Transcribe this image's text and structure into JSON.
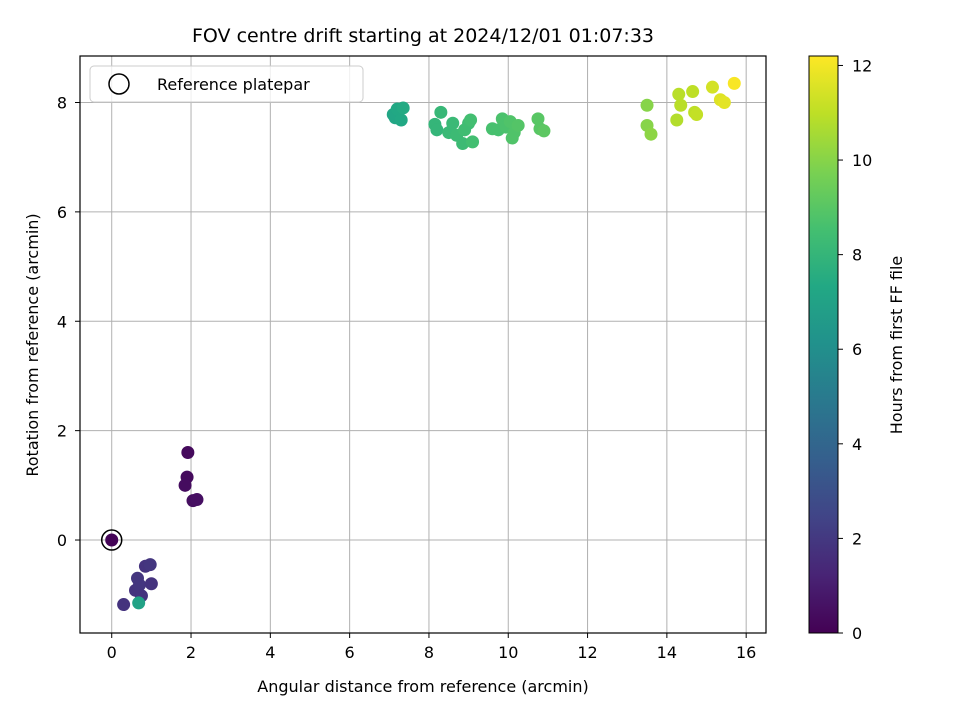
{
  "chart_data": {
    "type": "scatter",
    "title": "FOV centre drift starting at 2024/12/01 01:07:33",
    "xlabel": "Angular distance from reference (arcmin)",
    "ylabel": "Rotation from reference (arcmin)",
    "xlim": [
      -0.8,
      16.5
    ],
    "ylim": [
      -1.7,
      8.85
    ],
    "xticks": [
      0,
      2,
      4,
      6,
      8,
      10,
      12,
      14,
      16
    ],
    "yticks": [
      0,
      2,
      4,
      6,
      8
    ],
    "grid": true,
    "legend": {
      "placement": "upper-left",
      "entries": [
        "Reference platepar"
      ]
    },
    "reference_point": {
      "x": 0,
      "y": 0,
      "label": "Reference platepar"
    },
    "colorbar": {
      "label": "Hours from first FF file",
      "colormap": "viridis",
      "range": [
        0,
        12.2
      ],
      "ticks": [
        0,
        2,
        4,
        6,
        8,
        10,
        12
      ]
    },
    "points": [
      {
        "x": 0.0,
        "y": 0.0,
        "c": 0.1
      },
      {
        "x": 1.92,
        "y": 1.6,
        "c": 0.3
      },
      {
        "x": 1.9,
        "y": 1.15,
        "c": 0.35
      },
      {
        "x": 1.85,
        "y": 1.0,
        "c": 0.4
      },
      {
        "x": 2.05,
        "y": 0.72,
        "c": 0.45
      },
      {
        "x": 2.15,
        "y": 0.74,
        "c": 0.5
      },
      {
        "x": 0.3,
        "y": -1.18,
        "c": 1.8
      },
      {
        "x": 0.6,
        "y": -0.92,
        "c": 1.8
      },
      {
        "x": 0.65,
        "y": -0.7,
        "c": 1.9
      },
      {
        "x": 0.7,
        "y": -0.82,
        "c": 1.9
      },
      {
        "x": 0.75,
        "y": -1.02,
        "c": 1.8
      },
      {
        "x": 0.85,
        "y": -0.48,
        "c": 1.8
      },
      {
        "x": 0.97,
        "y": -0.45,
        "c": 1.9
      },
      {
        "x": 1.0,
        "y": -0.8,
        "c": 1.8
      },
      {
        "x": 0.68,
        "y": -1.15,
        "c": 7.0
      },
      {
        "x": 7.1,
        "y": 7.78,
        "c": 7.2
      },
      {
        "x": 7.15,
        "y": 7.72,
        "c": 7.2
      },
      {
        "x": 7.2,
        "y": 7.88,
        "c": 7.3
      },
      {
        "x": 7.3,
        "y": 7.68,
        "c": 7.3
      },
      {
        "x": 7.35,
        "y": 7.9,
        "c": 7.4
      },
      {
        "x": 8.15,
        "y": 7.6,
        "c": 8.0
      },
      {
        "x": 8.2,
        "y": 7.5,
        "c": 8.0
      },
      {
        "x": 8.3,
        "y": 7.82,
        "c": 8.1
      },
      {
        "x": 8.5,
        "y": 7.45,
        "c": 8.2
      },
      {
        "x": 8.6,
        "y": 7.62,
        "c": 8.2
      },
      {
        "x": 8.7,
        "y": 7.4,
        "c": 8.3
      },
      {
        "x": 8.85,
        "y": 7.25,
        "c": 8.3
      },
      {
        "x": 8.9,
        "y": 7.5,
        "c": 8.4
      },
      {
        "x": 9.0,
        "y": 7.62,
        "c": 8.4
      },
      {
        "x": 9.05,
        "y": 7.68,
        "c": 8.5
      },
      {
        "x": 9.1,
        "y": 7.28,
        "c": 8.5
      },
      {
        "x": 9.6,
        "y": 7.52,
        "c": 8.6
      },
      {
        "x": 9.75,
        "y": 7.5,
        "c": 8.6
      },
      {
        "x": 9.85,
        "y": 7.7,
        "c": 8.7
      },
      {
        "x": 9.95,
        "y": 7.55,
        "c": 8.7
      },
      {
        "x": 10.05,
        "y": 7.65,
        "c": 8.8
      },
      {
        "x": 10.1,
        "y": 7.35,
        "c": 8.8
      },
      {
        "x": 10.15,
        "y": 7.45,
        "c": 8.8
      },
      {
        "x": 10.25,
        "y": 7.58,
        "c": 8.9
      },
      {
        "x": 10.75,
        "y": 7.7,
        "c": 9.0
      },
      {
        "x": 10.8,
        "y": 7.52,
        "c": 9.0
      },
      {
        "x": 10.9,
        "y": 7.48,
        "c": 9.1
      },
      {
        "x": 13.5,
        "y": 7.95,
        "c": 10.0
      },
      {
        "x": 13.5,
        "y": 7.58,
        "c": 10.0
      },
      {
        "x": 13.6,
        "y": 7.42,
        "c": 10.1
      },
      {
        "x": 14.25,
        "y": 7.68,
        "c": 10.8
      },
      {
        "x": 14.3,
        "y": 8.15,
        "c": 10.9
      },
      {
        "x": 14.35,
        "y": 7.95,
        "c": 10.9
      },
      {
        "x": 14.65,
        "y": 8.2,
        "c": 11.0
      },
      {
        "x": 14.7,
        "y": 7.82,
        "c": 11.0
      },
      {
        "x": 14.75,
        "y": 7.78,
        "c": 11.1
      },
      {
        "x": 15.15,
        "y": 8.28,
        "c": 11.4
      },
      {
        "x": 15.35,
        "y": 8.05,
        "c": 11.6
      },
      {
        "x": 15.45,
        "y": 8.0,
        "c": 11.7
      },
      {
        "x": 15.7,
        "y": 8.35,
        "c": 12.1
      }
    ]
  }
}
